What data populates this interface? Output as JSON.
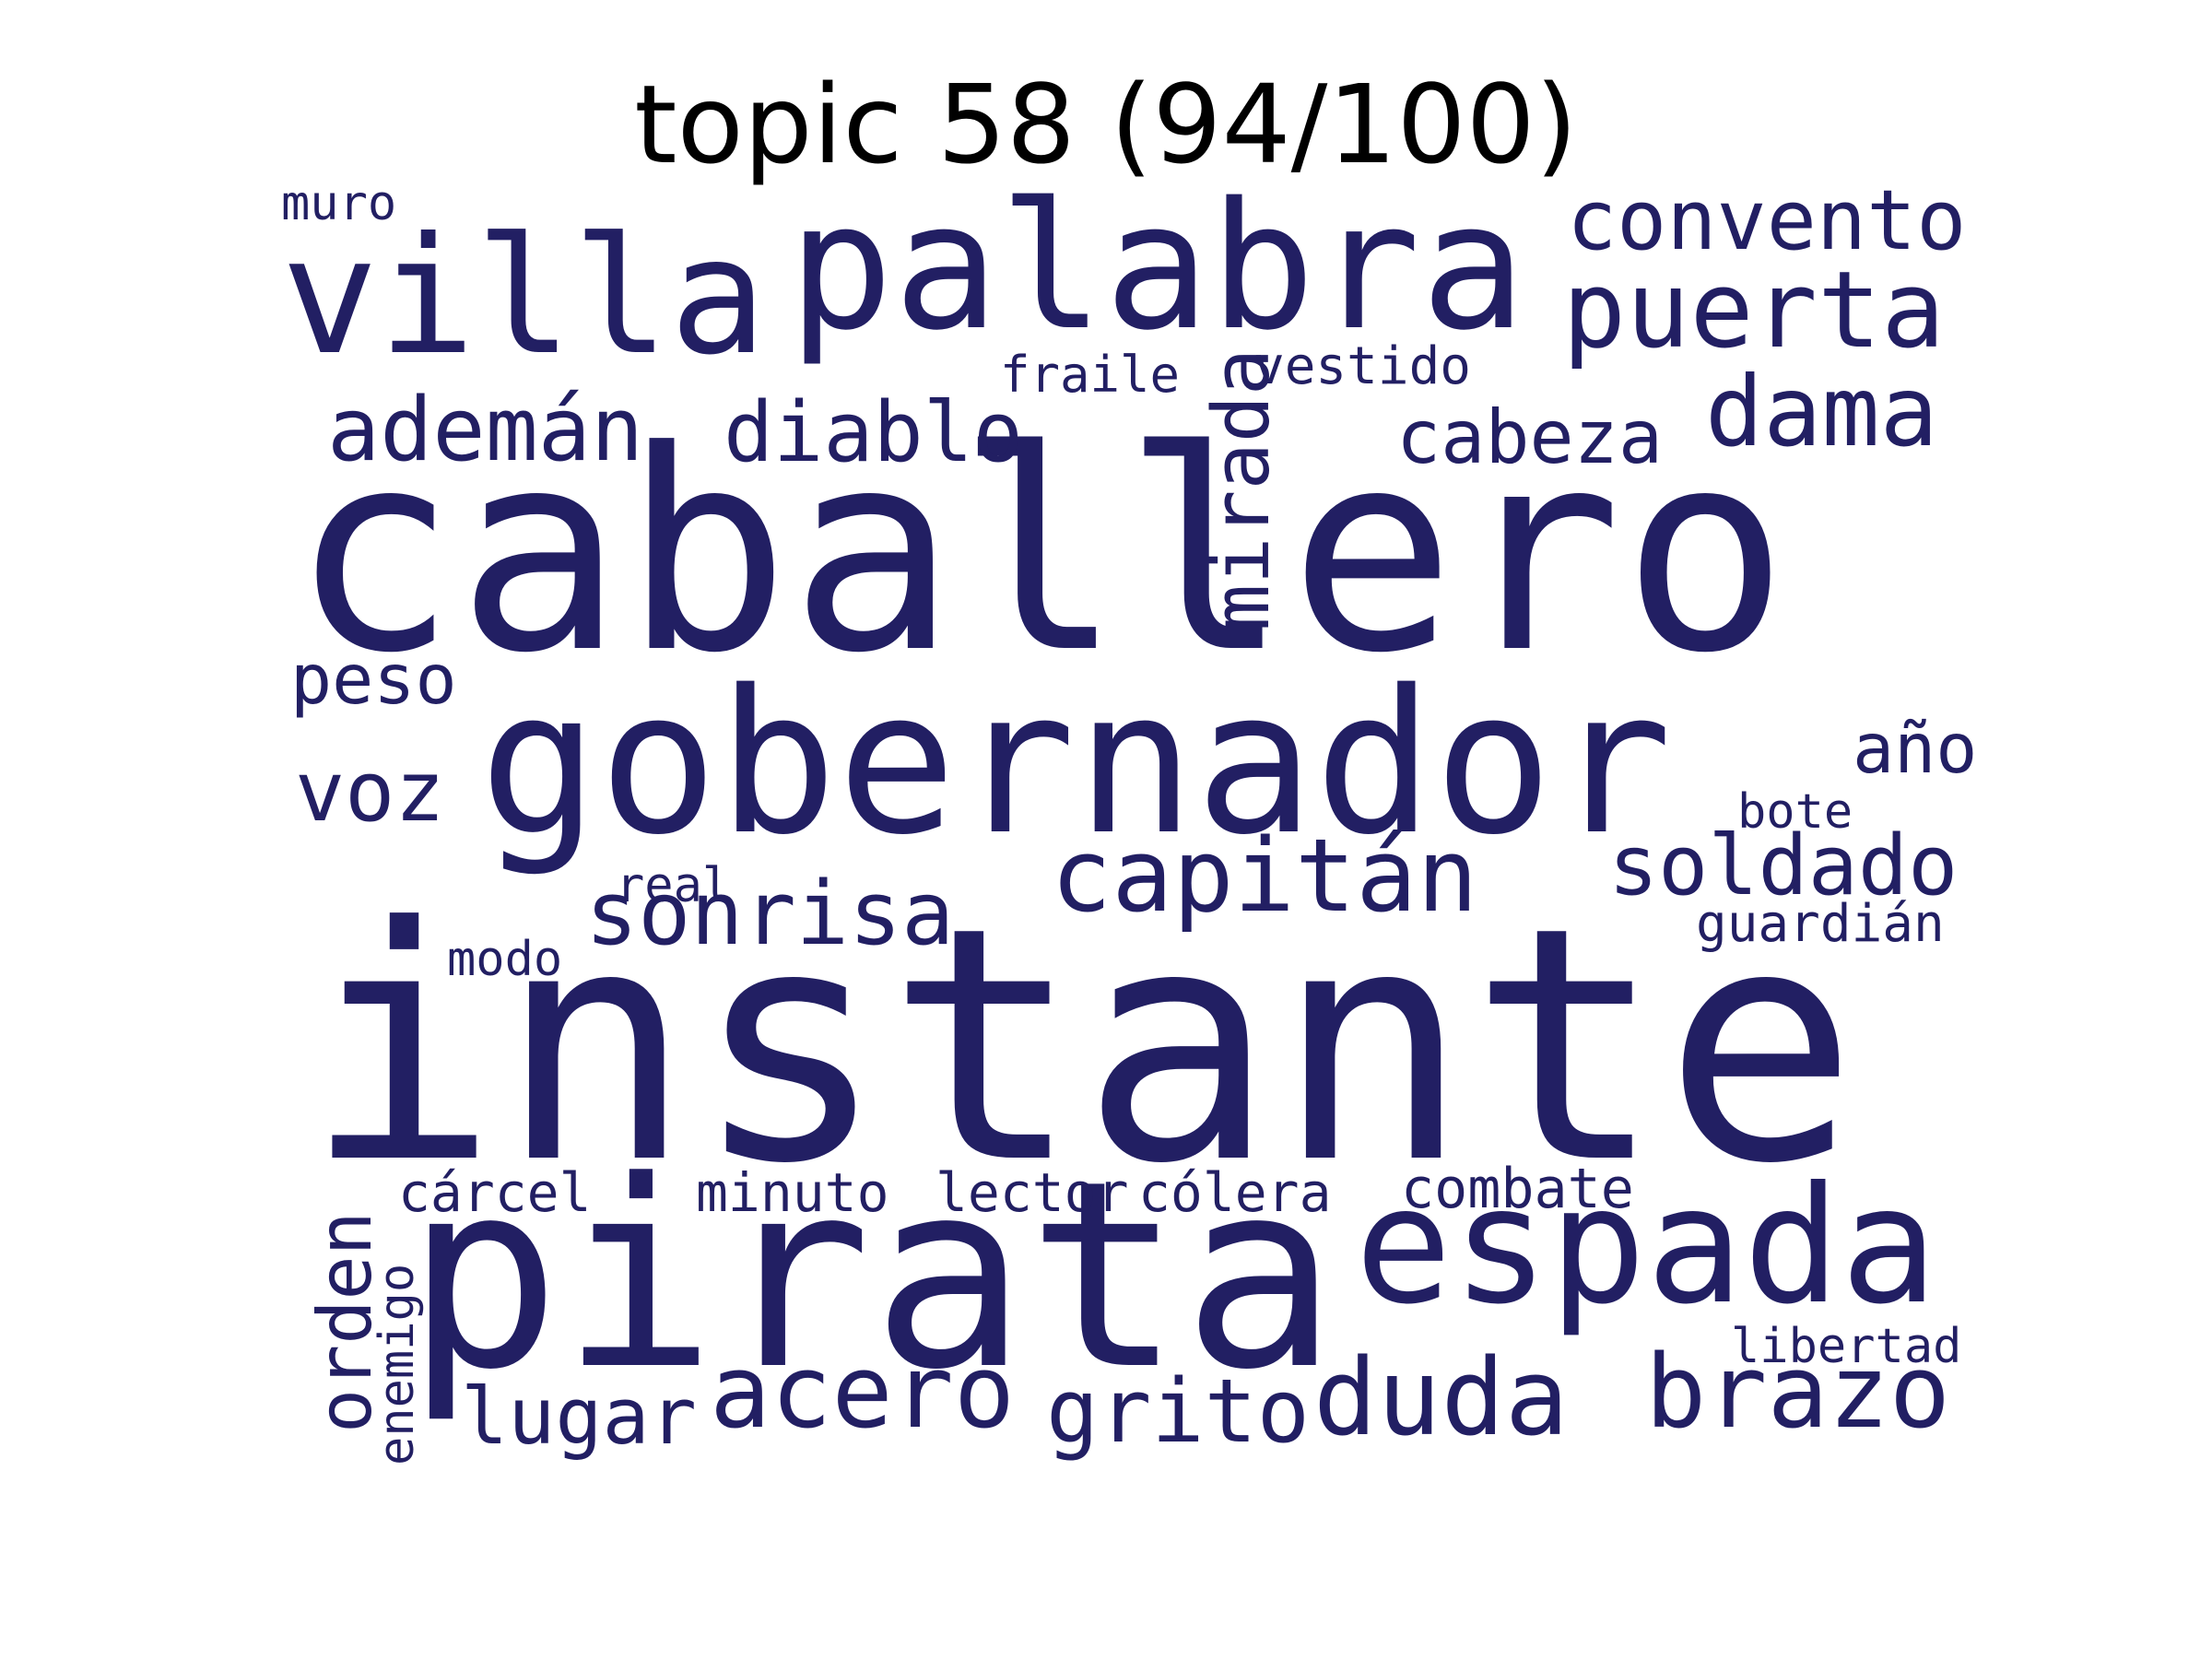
{
  "title": "topic 58 (94/100)",
  "word_color": "#221f63",
  "words": [
    {
      "text": "instante",
      "weight": 100
    },
    {
      "text": "caballero",
      "weight": 92
    },
    {
      "text": "pirata",
      "weight": 88
    },
    {
      "text": "gobernador",
      "weight": 68
    },
    {
      "text": "palabra",
      "weight": 60
    },
    {
      "text": "villa",
      "weight": 55
    },
    {
      "text": "espada",
      "weight": 53
    },
    {
      "text": "puerta",
      "weight": 40
    },
    {
      "text": "acero",
      "weight": 37
    },
    {
      "text": "duda",
      "weight": 37
    },
    {
      "text": "brazo",
      "weight": 36
    },
    {
      "text": "capitán",
      "weight": 36
    },
    {
      "text": "dama",
      "weight": 35
    },
    {
      "text": "sonrisa",
      "weight": 32
    },
    {
      "text": "convento",
      "weight": 31
    },
    {
      "text": "soldado",
      "weight": 30
    },
    {
      "text": "grito",
      "weight": 31
    },
    {
      "text": "ademán",
      "weight": 31
    },
    {
      "text": "diablo",
      "weight": 30
    },
    {
      "text": "mirada",
      "weight": 29
    },
    {
      "text": "voz",
      "weight": 29
    },
    {
      "text": "lugar",
      "weight": 28
    },
    {
      "text": "orden",
      "weight": 27
    },
    {
      "text": "cabeza",
      "weight": 27
    },
    {
      "text": "peso",
      "weight": 25
    },
    {
      "text": "año",
      "weight": 24
    },
    {
      "text": "combate",
      "weight": 20
    },
    {
      "text": "cárcel",
      "weight": 19
    },
    {
      "text": "minuto",
      "weight": 19
    },
    {
      "text": "lector",
      "weight": 19
    },
    {
      "text": "cólera",
      "weight": 19
    },
    {
      "text": "vestido",
      "weight": 19
    },
    {
      "text": "guardián",
      "weight": 19
    },
    {
      "text": "fraile",
      "weight": 18
    },
    {
      "text": "enemigo",
      "weight": 18
    },
    {
      "text": "libertad",
      "weight": 18
    },
    {
      "text": "muro",
      "weight": 18
    },
    {
      "text": "modo",
      "weight": 18
    },
    {
      "text": "real",
      "weight": 18
    },
    {
      "text": "bote",
      "weight": 18
    }
  ]
}
